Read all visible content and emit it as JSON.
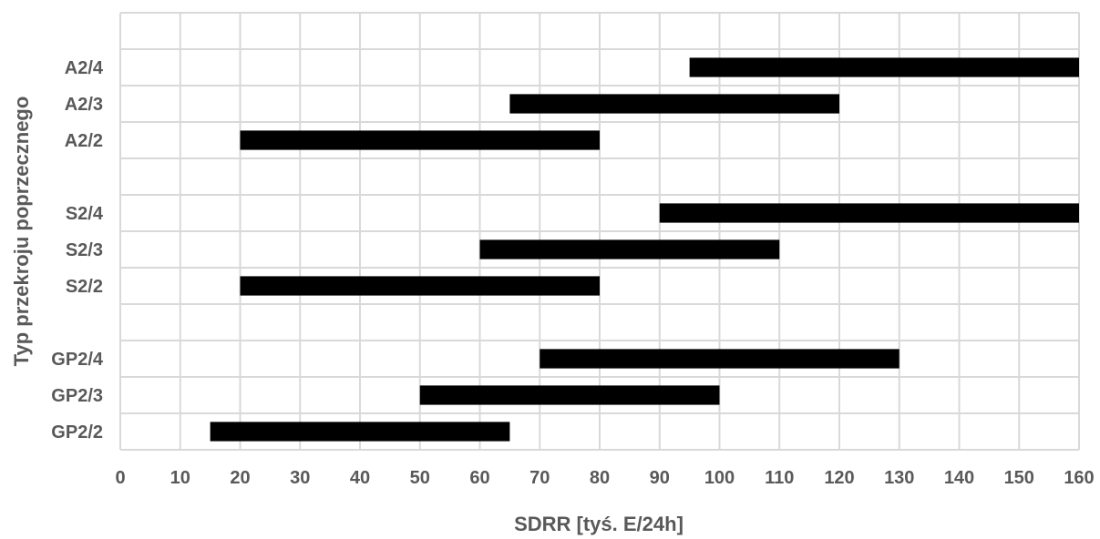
{
  "chart_data": {
    "type": "bar",
    "orientation": "horizontal-range",
    "xlabel": "SDRR [tyś. E/24h]",
    "ylabel": "Typ przekroju poprzecznego",
    "xlim": [
      0,
      160
    ],
    "xticks": [
      0,
      10,
      20,
      30,
      40,
      50,
      60,
      70,
      80,
      90,
      100,
      110,
      120,
      130,
      140,
      150,
      160
    ],
    "grid": true,
    "bar_color": "#000000",
    "grid_color": "#d9d9d9",
    "text_color": "#595959",
    "categories": [
      "",
      "A2/4",
      "A2/3",
      "A2/2",
      "",
      "S2/4",
      "S2/3",
      "S2/2",
      "",
      "GP2/4",
      "GP2/3",
      "GP2/2"
    ],
    "ranges": [
      null,
      [
        95,
        160
      ],
      [
        65,
        120
      ],
      [
        20,
        80
      ],
      null,
      [
        90,
        160
      ],
      [
        60,
        110
      ],
      [
        20,
        80
      ],
      null,
      [
        70,
        130
      ],
      [
        50,
        100
      ],
      [
        15,
        65
      ]
    ]
  }
}
